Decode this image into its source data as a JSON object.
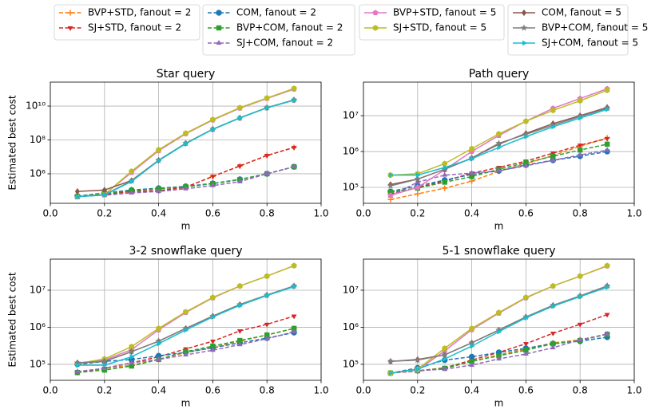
{
  "chart_data": [
    {
      "type": "line",
      "title": "Star query",
      "x_label": "m",
      "y_label": "Estimated best cost",
      "y_scale": "log",
      "grid": true,
      "x": [
        0.1,
        0.2,
        0.3,
        0.4,
        0.5,
        0.6,
        0.7,
        0.8,
        0.9
      ],
      "xlim": [
        0,
        1
      ],
      "xticks": [
        {
          "value": 0,
          "label": "0.0"
        },
        0.2,
        0.4,
        0.6,
        0.8,
        {
          "value": 1,
          "label": "1.0"
        }
      ],
      "ylim": [
        18000,
        260000000000
      ],
      "yticks": [
        {
          "value": 1000000,
          "label": "10⁶"
        },
        {
          "value": 100000000,
          "label": "10⁸"
        },
        {
          "value": 10000000000,
          "label": "10¹⁰"
        }
      ],
      "series": [
        {
          "name": "BVP+STD, fanout = 2",
          "color": "#ff7f0e",
          "linestyle": "dashed",
          "marker": "+",
          "values": [
            48000,
            58000,
            90000,
            100000,
            160000,
            700000,
            2900000,
            12000000,
            36000000
          ]
        },
        {
          "name": "SJ+STD, fanout = 2",
          "color": "#d62728",
          "linestyle": "dashed",
          "marker": "v",
          "values": [
            48000,
            62000,
            90000,
            100000,
            160000,
            700000,
            2900000,
            12000000,
            36000000
          ]
        },
        {
          "name": "COM, fanout = 2",
          "color": "#1f77b4",
          "linestyle": "dashed",
          "marker": "o",
          "values": [
            48000,
            74000,
            110000,
            140000,
            180000,
            270000,
            470000,
            1000000,
            2600000
          ]
        },
        {
          "name": "BVP+COM, fanout = 2",
          "color": "#2ca02c",
          "linestyle": "dashed",
          "marker": "s",
          "values": [
            46000,
            70000,
            100000,
            130000,
            170000,
            260000,
            450000,
            1000000,
            2600000
          ]
        },
        {
          "name": "SJ+COM, fanout = 2",
          "color": "#9467bd",
          "linestyle": "dashed",
          "marker": "^",
          "values": [
            46000,
            54000,
            74000,
            90000,
            130000,
            200000,
            340000,
            1000000,
            2600000
          ]
        },
        {
          "name": "BVP+STD, fanout = 5",
          "color": "#e377c2",
          "linestyle": "solid",
          "marker": "p",
          "values": [
            44000,
            60000,
            1200000,
            23000000,
            230000000,
            1500000000,
            7500000000,
            28000000000,
            100000000000
          ]
        },
        {
          "name": "SJ+STD, fanout = 5",
          "color": "#bcbd22",
          "linestyle": "solid",
          "marker": "h",
          "values": [
            44000,
            60000,
            1400000,
            26000000,
            250000000,
            1600000000,
            8000000000,
            30000000000,
            110000000000
          ]
        },
        {
          "name": "COM, fanout = 5",
          "color": "#8c564b",
          "linestyle": "solid",
          "marker": "D",
          "values": [
            90000,
            110000,
            400000,
            6300000,
            63000000,
            430000000,
            2000000000,
            8000000000,
            23000000000
          ]
        },
        {
          "name": "BVP+COM, fanout = 5",
          "color": "#7f7f7f",
          "linestyle": "solid",
          "marker": "*",
          "values": [
            45000,
            58000,
            380000,
            6300000,
            63000000,
            430000000,
            2000000000,
            8000000000,
            23000000000
          ]
        },
        {
          "name": "SJ+COM, fanout = 5",
          "color": "#17becf",
          "linestyle": "solid",
          "marker": ">",
          "values": [
            44000,
            56000,
            350000,
            6000000,
            60000000,
            420000000,
            2000000000,
            7800000000,
            22000000000
          ]
        }
      ]
    },
    {
      "type": "line",
      "title": "Path query",
      "x_label": "m",
      "y_scale": "log",
      "grid": true,
      "x": [
        0.1,
        0.2,
        0.3,
        0.4,
        0.5,
        0.6,
        0.7,
        0.8,
        0.9
      ],
      "xlim": [
        0,
        1
      ],
      "xticks": [
        {
          "value": 0,
          "label": "0.0"
        },
        0.2,
        0.4,
        0.6,
        0.8,
        {
          "value": 1,
          "label": "1.0"
        }
      ],
      "ylim": [
        36000,
        86000000
      ],
      "yticks": [
        {
          "value": 100000,
          "label": "10⁵"
        },
        {
          "value": 1000000,
          "label": "10⁶"
        },
        {
          "value": 10000000,
          "label": "10⁷"
        }
      ],
      "series": [
        {
          "name": "BVP+STD, fanout = 2",
          "color": "#ff7f0e",
          "linestyle": "dashed",
          "marker": "+",
          "values": [
            46000,
            66000,
            95000,
            150000,
            280000,
            460000,
            770000,
            1400000,
            2400000
          ]
        },
        {
          "name": "SJ+STD, fanout = 2",
          "color": "#d62728",
          "linestyle": "dashed",
          "marker": "v",
          "values": [
            66000,
            100000,
            150000,
            250000,
            360000,
            540000,
            900000,
            1500000,
            2300000
          ]
        },
        {
          "name": "COM, fanout = 2",
          "color": "#1f77b4",
          "linestyle": "dashed",
          "marker": "o",
          "values": [
            77000,
            110000,
            160000,
            230000,
            290000,
            420000,
            570000,
            740000,
            1000000
          ]
        },
        {
          "name": "BVP+COM, fanout = 2",
          "color": "#2ca02c",
          "linestyle": "dashed",
          "marker": "s",
          "values": [
            74000,
            95000,
            140000,
            200000,
            320000,
            490000,
            740000,
            1100000,
            1600000
          ]
        },
        {
          "name": "SJ+COM, fanout = 2",
          "color": "#9467bd",
          "linestyle": "dashed",
          "marker": "^",
          "values": [
            57000,
            140000,
            220000,
            250000,
            290000,
            400000,
            570000,
            800000,
            1100000
          ]
        },
        {
          "name": "BVP+STD, fanout = 5",
          "color": "#e377c2",
          "linestyle": "solid",
          "marker": "p",
          "values": [
            60000,
            100000,
            310000,
            1000000,
            2800000,
            7000000,
            16000000,
            30000000,
            56000000
          ]
        },
        {
          "name": "SJ+STD, fanout = 5",
          "color": "#bcbd22",
          "linestyle": "solid",
          "marker": "h",
          "values": [
            220000,
            240000,
            460000,
            1200000,
            3100000,
            7000000,
            14000000,
            26000000,
            51000000
          ]
        },
        {
          "name": "COM, fanout = 5",
          "color": "#8c564b",
          "linestyle": "solid",
          "marker": "D",
          "values": [
            120000,
            170000,
            320000,
            660000,
            1600000,
            3200000,
            6000000,
            10000000,
            17000000
          ]
        },
        {
          "name": "BVP+COM, fanout = 5",
          "color": "#7f7f7f",
          "linestyle": "solid",
          "marker": "*",
          "values": [
            110000,
            170000,
            320000,
            660000,
            1700000,
            3000000,
            5400000,
            9500000,
            16000000
          ]
        },
        {
          "name": "SJ+COM, fanout = 5",
          "color": "#17becf",
          "linestyle": "solid",
          "marker": ">",
          "values": [
            220000,
            220000,
            360000,
            630000,
            1300000,
            2600000,
            4900000,
            8600000,
            15000000
          ]
        }
      ]
    },
    {
      "type": "line",
      "title": "3-2 snowflake query",
      "x_label": "m",
      "y_label": "Estimated best cost",
      "y_scale": "log",
      "grid": true,
      "x": [
        0.1,
        0.2,
        0.3,
        0.4,
        0.5,
        0.6,
        0.7,
        0.8,
        0.9
      ],
      "xlim": [
        0,
        1
      ],
      "xticks": [
        {
          "value": 0,
          "label": "0.0"
        },
        0.2,
        0.4,
        0.6,
        0.8,
        {
          "value": 1,
          "label": "1.0"
        }
      ],
      "ylim": [
        37000,
        69000000
      ],
      "yticks": [
        {
          "value": 100000,
          "label": "10⁵"
        },
        {
          "value": 1000000,
          "label": "10⁶"
        },
        {
          "value": 10000000,
          "label": "10⁷"
        }
      ],
      "series": [
        {
          "name": "BVP+STD, fanout = 2",
          "color": "#ff7f0e",
          "linestyle": "dashed",
          "marker": "+",
          "values": [
            60000,
            78000,
            95000,
            135000,
            210000,
            280000,
            420000,
            620000,
            930000
          ]
        },
        {
          "name": "SJ+STD, fanout = 2",
          "color": "#d62728",
          "linestyle": "dashed",
          "marker": "v",
          "values": [
            60000,
            78000,
            110000,
            160000,
            260000,
            420000,
            800000,
            1200000,
            2000000
          ]
        },
        {
          "name": "COM, fanout = 2",
          "color": "#1f77b4",
          "linestyle": "dashed",
          "marker": "o",
          "values": [
            100000,
            120000,
            135000,
            170000,
            210000,
            280000,
            380000,
            510000,
            720000
          ]
        },
        {
          "name": "BVP+COM, fanout = 2",
          "color": "#2ca02c",
          "linestyle": "dashed",
          "marker": "s",
          "values": [
            60000,
            70000,
            90000,
            135000,
            220000,
            310000,
            440000,
            620000,
            930000
          ]
        },
        {
          "name": "SJ+COM, fanout = 2",
          "color": "#9467bd",
          "linestyle": "dashed",
          "marker": "^",
          "values": [
            64000,
            78000,
            110000,
            135000,
            180000,
            240000,
            340000,
            490000,
            760000
          ]
        },
        {
          "name": "BVP+STD, fanout = 5",
          "color": "#e377c2",
          "linestyle": "solid",
          "marker": "p",
          "values": [
            105000,
            130000,
            250000,
            850000,
            2500000,
            6200000,
            13000000,
            24000000,
            46000000
          ]
        },
        {
          "name": "SJ+STD, fanout = 5",
          "color": "#bcbd22",
          "linestyle": "solid",
          "marker": "h",
          "values": [
            105000,
            140000,
            300000,
            930000,
            2600000,
            6400000,
            13000000,
            24000000,
            46000000
          ]
        },
        {
          "name": "COM, fanout = 5",
          "color": "#8c564b",
          "linestyle": "solid",
          "marker": "D",
          "values": [
            110000,
            120000,
            220000,
            420000,
            930000,
            2000000,
            4100000,
            7400000,
            13000000
          ]
        },
        {
          "name": "BVP+COM, fanout = 5",
          "color": "#7f7f7f",
          "linestyle": "solid",
          "marker": "*",
          "values": [
            110000,
            120000,
            220000,
            420000,
            930000,
            2000000,
            4100000,
            7400000,
            13000000
          ]
        },
        {
          "name": "SJ+COM, fanout = 5",
          "color": "#17becf",
          "linestyle": "solid",
          "marker": ">",
          "values": [
            95000,
            95000,
            160000,
            360000,
            840000,
            1900000,
            3900000,
            7200000,
            12500000
          ]
        }
      ]
    },
    {
      "type": "line",
      "title": "5-1 snowflake query",
      "x_label": "m",
      "y_scale": "log",
      "grid": true,
      "x": [
        0.1,
        0.2,
        0.3,
        0.4,
        0.5,
        0.6,
        0.7,
        0.8,
        0.9
      ],
      "xlim": [
        0,
        1
      ],
      "xticks": [
        {
          "value": 0,
          "label": "0.0"
        },
        0.2,
        0.4,
        0.6,
        0.8,
        {
          "value": 1,
          "label": "1.0"
        }
      ],
      "ylim": [
        37000,
        69000000
      ],
      "yticks": [
        {
          "value": 100000,
          "label": "10⁵"
        },
        {
          "value": 1000000,
          "label": "10⁶"
        },
        {
          "value": 10000000,
          "label": "10⁷"
        }
      ],
      "series": [
        {
          "name": "BVP+STD, fanout = 2",
          "color": "#ff7f0e",
          "linestyle": "dashed",
          "marker": "+",
          "values": [
            58000,
            65000,
            78000,
            120000,
            180000,
            260000,
            380000,
            460000,
            660000
          ]
        },
        {
          "name": "SJ+STD, fanout = 2",
          "color": "#d62728",
          "linestyle": "dashed",
          "marker": "v",
          "values": [
            58000,
            67000,
            80000,
            130000,
            210000,
            360000,
            690000,
            1200000,
            2200000
          ]
        },
        {
          "name": "COM, fanout = 2",
          "color": "#1f77b4",
          "linestyle": "dashed",
          "marker": "o",
          "values": [
            58000,
            80000,
            130000,
            160000,
            210000,
            270000,
            360000,
            420000,
            540000
          ]
        },
        {
          "name": "BVP+COM, fanout = 2",
          "color": "#2ca02c",
          "linestyle": "dashed",
          "marker": "s",
          "values": [
            58000,
            67000,
            78000,
            120000,
            170000,
            240000,
            360000,
            440000,
            650000
          ]
        },
        {
          "name": "SJ+COM, fanout = 2",
          "color": "#9467bd",
          "linestyle": "dashed",
          "marker": "^",
          "values": [
            58000,
            67000,
            74000,
            95000,
            140000,
            190000,
            280000,
            460000,
            650000
          ]
        },
        {
          "name": "BVP+STD, fanout = 5",
          "color": "#e377c2",
          "linestyle": "solid",
          "marker": "p",
          "values": [
            58000,
            70000,
            230000,
            860000,
            2400000,
            6200000,
            13000000,
            24000000,
            45000000
          ]
        },
        {
          "name": "SJ+STD, fanout = 5",
          "color": "#bcbd22",
          "linestyle": "solid",
          "marker": "h",
          "values": [
            58000,
            74000,
            270000,
            930000,
            2500000,
            6400000,
            13000000,
            24000000,
            46000000
          ]
        },
        {
          "name": "COM, fanout = 5",
          "color": "#8c564b",
          "linestyle": "solid",
          "marker": "D",
          "values": [
            120000,
            135000,
            180000,
            380000,
            840000,
            1900000,
            3900000,
            7000000,
            13000000
          ]
        },
        {
          "name": "BVP+COM, fanout = 5",
          "color": "#7f7f7f",
          "linestyle": "solid",
          "marker": "*",
          "values": [
            120000,
            130000,
            180000,
            380000,
            840000,
            1900000,
            3900000,
            7000000,
            13000000
          ]
        },
        {
          "name": "SJ+COM, fanout = 5",
          "color": "#17becf",
          "linestyle": "solid",
          "marker": ">",
          "values": [
            58000,
            74000,
            140000,
            310000,
            760000,
            1800000,
            3700000,
            6700000,
            12000000
          ]
        }
      ]
    }
  ]
}
